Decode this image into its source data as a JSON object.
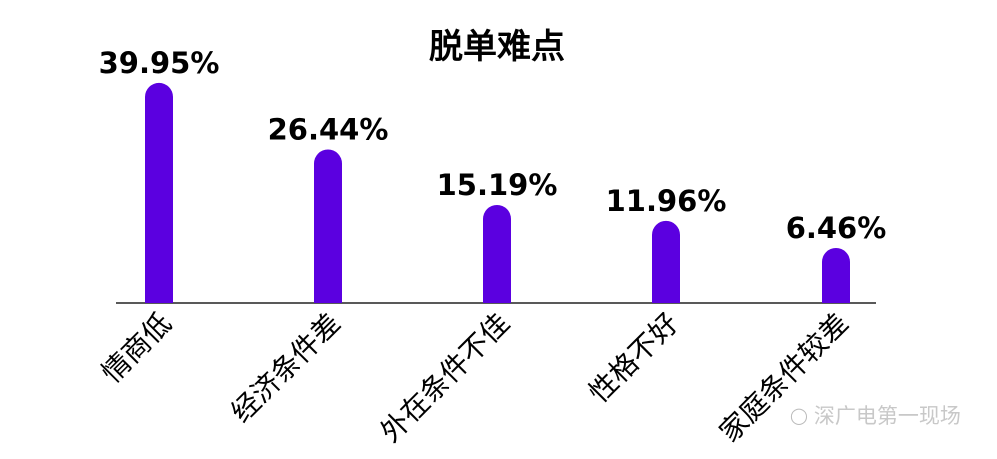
{
  "chart_data": {
    "type": "bar",
    "title": "脱单难点",
    "categories": [
      "情商低",
      "经济条件差",
      "外在条件不佳",
      "性格不好",
      "家庭条件较差"
    ],
    "values": [
      39.95,
      26.44,
      15.19,
      11.96,
      6.46
    ],
    "data_labels": [
      "39.95%",
      "26.44%",
      "15.19%",
      "11.96%",
      "6.46%"
    ],
    "xlabel": "",
    "ylabel": "",
    "grid": false,
    "bar_color": "#5b00e0"
  },
  "watermark": {
    "text": "深广电第一现场",
    "icon": "wechat-icon"
  }
}
